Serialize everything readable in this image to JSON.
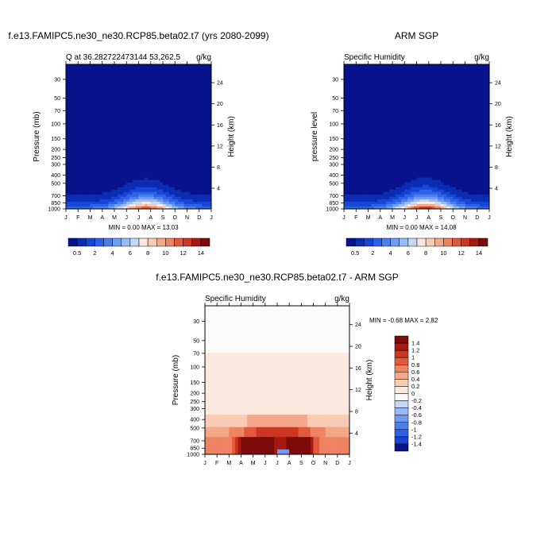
{
  "months": [
    "J",
    "F",
    "M",
    "A",
    "M",
    "J",
    "J",
    "A",
    "S",
    "O",
    "N",
    "D",
    "J"
  ],
  "pressure_ticks": [
    "30",
    "50",
    "70",
    "100",
    "150",
    "200",
    "250",
    "300",
    "400",
    "500",
    "700",
    "850",
    "1000"
  ],
  "panels": [
    {
      "id": "model",
      "title": "f.e13.FAMIPC5.ne30_ne30.RCP85.beta02.t7 (yrs 2080-2099)",
      "subtitle_left": "Q at 36.282722473144 53,262.5",
      "subtitle_right": "g/kg",
      "ylabel": "Pressure (mb)",
      "ylabel_right": "Height (km)",
      "height_ticks": [
        "24",
        "20",
        "16",
        "12",
        "8",
        "4"
      ],
      "minmax": "MIN =   0.00 MAX =   13.03",
      "peak": 13.03
    },
    {
      "id": "obs",
      "title": "ARM SGP",
      "subtitle_left": "Specific Humidity",
      "subtitle_right": "g/kg",
      "ylabel": "pressure level",
      "ylabel_right": "Height (km)",
      "height_ticks": [
        "24",
        "20",
        "16",
        "12",
        "8",
        "4"
      ],
      "minmax": "MIN =   0.00 MAX =   14.08",
      "peak": 14.08
    },
    {
      "id": "diff",
      "title": "f.e13.FAMIPC5.ne30_ne30.RCP85.beta02.t7 - ARM SGP",
      "subtitle_left": "Specific Humidity",
      "subtitle_right": "g/kg",
      "ylabel": "Pressure (mb)",
      "ylabel_right": "Height (km)",
      "height_ticks": [
        "24",
        "20",
        "16",
        "12",
        "8",
        "4"
      ],
      "minmax": "MIN =  -0.68 MAX =   2.82"
    }
  ],
  "colorbar_q": {
    "labels": [
      "0.5",
      "2",
      "4",
      "6",
      "8",
      "10",
      "12",
      "14"
    ],
    "colors": [
      "#08128a",
      "#0b2cb3",
      "#1746d4",
      "#2d62e6",
      "#4b7fee",
      "#6f9cf3",
      "#98bbf6",
      "#c4d8f8",
      "#fbe9de",
      "#f8cbb4",
      "#f3a889",
      "#ed8362",
      "#e25a3c",
      "#cd3621",
      "#a81812",
      "#7c0b0a"
    ]
  },
  "colorbar_diff": {
    "labels": [
      "1.4",
      "1.2",
      "1",
      "0.8",
      "0.6",
      "0.4",
      "0.2",
      "0",
      "-0.2",
      "-0.4",
      "-0.6",
      "-0.8",
      "-1",
      "-1.2",
      "-1.4"
    ],
    "colors": [
      "#7c0b0a",
      "#a81812",
      "#cd3621",
      "#e25a3c",
      "#ed8362",
      "#f3a889",
      "#f8cbb4",
      "#fbe9de",
      "#fbfbfb",
      "#c4d8f8",
      "#98bbf6",
      "#6f9cf3",
      "#4b7fee",
      "#2d62e6",
      "#1746d4",
      "#08128a"
    ]
  },
  "chart_data": [
    {
      "type": "heatmap",
      "title": "f.e13.FAMIPC5.ne30_ne30.RCP85.beta02.t7 (yrs 2080-2099)",
      "xlabel": "",
      "ylabel": "Pressure (mb)",
      "x": [
        "J",
        "F",
        "M",
        "A",
        "M",
        "J",
        "J",
        "A",
        "S",
        "O",
        "N",
        "D",
        "J"
      ],
      "y": [
        30,
        50,
        70,
        100,
        150,
        200,
        250,
        300,
        400,
        500,
        700,
        850,
        1000
      ],
      "units": "g/kg",
      "min": 0.0,
      "max": 13.03
    },
    {
      "type": "heatmap",
      "title": "ARM SGP",
      "xlabel": "",
      "ylabel": "pressure level",
      "x": [
        "J",
        "F",
        "M",
        "A",
        "M",
        "J",
        "J",
        "A",
        "S",
        "O",
        "N",
        "D",
        "J"
      ],
      "y": [
        30,
        50,
        70,
        100,
        150,
        200,
        250,
        300,
        400,
        500,
        700,
        850,
        1000
      ],
      "units": "g/kg",
      "min": 0.0,
      "max": 14.08
    },
    {
      "type": "heatmap",
      "title": "f.e13.FAMIPC5.ne30_ne30.RCP85.beta02.t7 - ARM SGP",
      "xlabel": "",
      "ylabel": "Pressure (mb)",
      "x": [
        "J",
        "F",
        "M",
        "A",
        "M",
        "J",
        "J",
        "A",
        "S",
        "O",
        "N",
        "D",
        "J"
      ],
      "y": [
        30,
        50,
        70,
        100,
        150,
        200,
        250,
        300,
        400,
        500,
        700,
        850,
        1000
      ],
      "units": "g/kg",
      "min": -0.68,
      "max": 2.82
    }
  ]
}
